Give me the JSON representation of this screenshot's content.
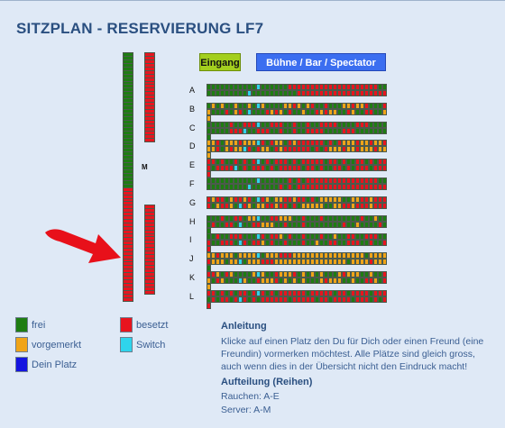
{
  "page": {
    "title": "SITZPLAN - RESERVIERUNG LF7"
  },
  "header": {
    "entrance_label": "Eingang",
    "stage_label": "Bühne / Bar / Spectator"
  },
  "colors": {
    "frei": "#1e7d12",
    "besetzt": "#e8141e",
    "vorgemerkt": "#f0a418",
    "switch": "#2fd4ec",
    "dein_platz": "#1414e0"
  },
  "seat_key": {
    "G": "frei",
    "R": "besetzt",
    "O": "vorgemerkt",
    "C": "switch",
    "B": "dein_platz"
  },
  "side_columns": {
    "marker_label": "M",
    "left_column": "GGGGGGGGGGGGGGGGGGGGGGGGGGGGGGGGGGGGGGRRRRRRRRRRRRRRRRRRRRRRRRRRRRRRRR",
    "right_top_column": "RRRRRRRRRRRRRRRRRRRRRRRRR",
    "right_bottom_column": "RRRRRRRRRRRRRRRRRRRRRRRRR"
  },
  "rows": [
    {
      "label": "A",
      "seats": "GGGGGGGGGGGCGGGGGGRRRRRRRRRRRRRRRRRRRRGGGGGGGGGGGCGGGGGGGGGGRRRRRRRRRRRRRRRRRRRR"
    },
    {
      "label": "B",
      "seats": "GOGOGGOGGOGCOGGGGOOROGORGGRGGGOOROORGGGROGGGRGORGCGGGROROGRGGOGGROROOGGROGGRRGGOO"
    },
    {
      "label": "C",
      "seats": "GGGGGRGGRRRCGGRRRGGRGGRGGRRRRGGGGRRRGGGGGGGGGRRRCGGRRRGGRGGRGGRRRRGGGGRRRGGGGGGGG"
    },
    {
      "label": "D",
      "seats": "OORGOOOROOOCRGROOGRORRRRRRGRGROOOROOROOROORGOROOCRGROOGRORRRRRRGRGROOOROOROOOROOO"
    },
    {
      "label": "E",
      "seats": "RRGRGGRGRGRCGRGRRRGRGRRRRRGRRGRGGRRGRGRRRGRRRRCGRGRRRGRGRRRRRGRRGRGGRRGRGRRRGRRRR"
    },
    {
      "label": "F",
      "seats": "GGGGGGGGGGGCGGGGGGRGRGRRRRRRRRRRRRRRRRGGGGGGGGGGGCGGGGGGRGRGRRRRRRRRRRRRRRRRRRRR"
    },
    {
      "label": "G",
      "seats": "RORRGORRORGCROGOORRORRGRGOOOOOGGOORRORRRRGORROGCROGOORRORRGRGOOOOOGGOORRORRRORRR"
    },
    {
      "label": "H",
      "seats": "GGGRGGRRGOOCGGRROOOGGRGGGRGGGGGGGGRGGOGGGRGGRRGCGGRROOOGGRGGGRGGGGGGGGRGGOGGGGRGG"
    },
    {
      "label": "I",
      "seats": "GGRGGRRRGGGCRGRROGRGGRGGGRGGOGGRRGGRRRGGRGGRRRGCRGRROGRGGRGGGRGGOGGRRGGRRRGGRGGRR"
    },
    {
      "label": "J",
      "seats": "OOROOOGOOOOCGOOORRROOOOOOOOOOOOOOOOGOOOOROOOGOOCGOOORRROOOOOOOOOOOOOOOOGOOOOROOOG"
    },
    {
      "label": "K",
      "seats": "RROGROGGGGOCOGGROOORGOGOGOGGGOROOOGGOGGROGROGGGCOGGROOORGOGOGOGGGOROOOGGOGGRROGRO"
    },
    {
      "label": "L",
      "seats": "RRGRGRGRRGRCRGRGRRRRRRGRRRRRGRRGRRRRGRRRGRGRRGRCRGRGRRRRRRGRRRRRGRRGRRRRGRRRGRGRR"
    }
  ],
  "legend": [
    {
      "id": "frei",
      "label": "frei",
      "color": "#1e7d12"
    },
    {
      "id": "besetzt",
      "label": "besetzt",
      "color": "#e8141e"
    },
    {
      "id": "vorgemerkt",
      "label": "vorgemerkt",
      "color": "#f0a418"
    },
    {
      "id": "switch",
      "label": "Switch",
      "color": "#2fd4ec"
    },
    {
      "id": "dein-platz",
      "label": "Dein Platz",
      "color": "#1414e0"
    }
  ],
  "instructions": {
    "heading": "Anleitung",
    "text": "Klicke auf einen Platz den Du für Dich oder einen Freund (eine Freundin) vormerken möchtest. Alle Plätze sind gleich gross, auch wenn dies in der Übersicht nicht den Eindruck macht!",
    "rows_heading": "Aufteilung (Reihen)",
    "rows_smoking": "Rauchen: A-E",
    "rows_server": "Server: A-M"
  }
}
